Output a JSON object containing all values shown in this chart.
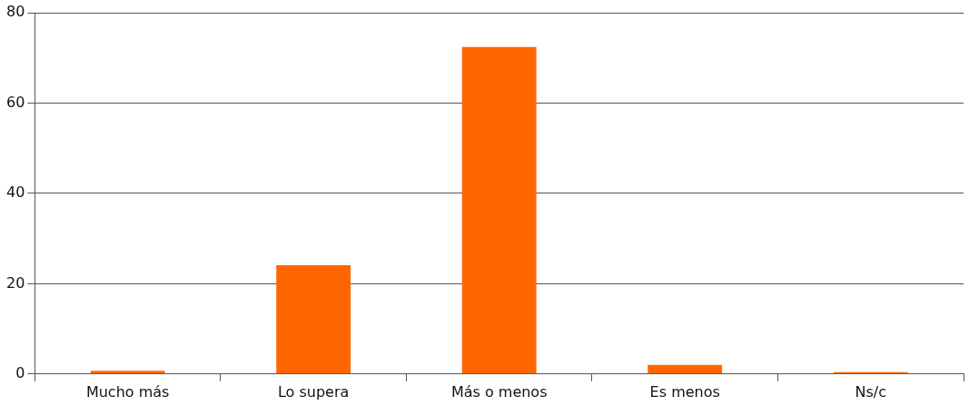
{
  "chart_data": {
    "type": "bar",
    "categories": [
      "Mucho más",
      "Lo supera",
      "Más o menos",
      "Es menos",
      "Ns/c"
    ],
    "values": [
      0.7,
      24.1,
      72.4,
      2.0,
      0.4
    ],
    "color": "#ff6600",
    "ylim": [
      0,
      80
    ],
    "yticks": [
      0,
      20,
      40,
      60,
      80
    ],
    "grid": "y",
    "legend": false
  }
}
